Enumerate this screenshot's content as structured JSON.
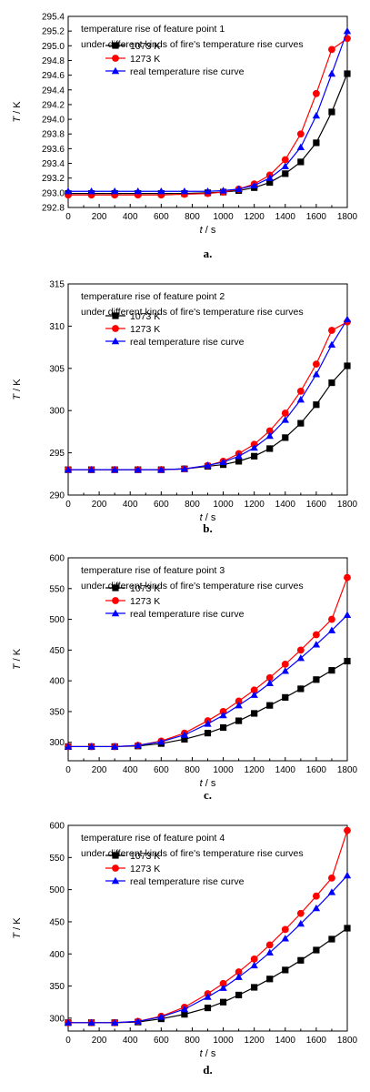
{
  "colors": {
    "s1073": "#000000",
    "s1273": "#ff0000",
    "sreal": "#0000ff",
    "axis": "#000000"
  },
  "chart_data": [
    {
      "type": "line",
      "caption": "a.",
      "annotation": [
        "temperature rise of feature point 1",
        "under different kinds of fire's temperature rise curves"
      ],
      "xlabel_var": "t",
      "xlabel_unit": " / s",
      "ylabel_var": "T",
      "ylabel_unit": " / K",
      "xlim": [
        0,
        1800
      ],
      "ylim": [
        292.8,
        295.4
      ],
      "xticks": [
        0,
        200,
        400,
        600,
        800,
        1000,
        1200,
        1400,
        1600,
        1800
      ],
      "yticks": [
        292.8,
        293.0,
        293.2,
        293.4,
        293.6,
        293.8,
        294.0,
        294.2,
        294.4,
        294.6,
        294.8,
        295.0,
        295.2,
        295.4
      ],
      "ytick_labels": [
        "292.8",
        "293.0",
        "293.2",
        "293.4",
        "293.6",
        "293.8",
        "294.0",
        "294.2",
        "294.4",
        "294.6",
        "294.8",
        "295.0",
        "295.2",
        "295.4"
      ],
      "legend_pos": "upper-left",
      "x": [
        0,
        150,
        300,
        450,
        600,
        750,
        900,
        1000,
        1100,
        1200,
        1300,
        1400,
        1500,
        1600,
        1700,
        1800
      ],
      "series": [
        {
          "name": "1073 K",
          "marker": "square",
          "values": [
            292.99,
            292.99,
            292.99,
            292.99,
            292.99,
            292.99,
            293.0,
            293.01,
            293.03,
            293.07,
            293.14,
            293.26,
            293.42,
            293.68,
            294.1,
            294.62
          ]
        },
        {
          "name": "1273 K",
          "marker": "circle",
          "values": [
            292.97,
            292.97,
            292.97,
            292.97,
            292.97,
            292.98,
            292.99,
            293.01,
            293.05,
            293.12,
            293.24,
            293.45,
            293.8,
            294.35,
            294.95,
            295.1
          ]
        },
        {
          "name": "real temperature rise curve",
          "marker": "triangle",
          "values": [
            293.02,
            293.02,
            293.02,
            293.02,
            293.02,
            293.02,
            293.02,
            293.03,
            293.05,
            293.1,
            293.2,
            293.36,
            293.62,
            294.05,
            294.62,
            295.2
          ]
        }
      ]
    },
    {
      "type": "line",
      "caption": "b.",
      "annotation": [
        "temperature rise of feature point 2",
        "under different kinds of fire's temperature rise curves"
      ],
      "xlabel_var": "t",
      "xlabel_unit": " / s",
      "ylabel_var": "T",
      "ylabel_unit": " / K",
      "xlim": [
        0,
        1800
      ],
      "ylim": [
        290,
        315
      ],
      "xticks": [
        0,
        200,
        400,
        600,
        800,
        1000,
        1200,
        1400,
        1600,
        1800
      ],
      "yticks": [
        290,
        295,
        300,
        305,
        310,
        315
      ],
      "ytick_labels": [
        "290",
        "295",
        "300",
        "305",
        "310",
        "315"
      ],
      "legend_pos": "upper-left",
      "x": [
        0,
        150,
        300,
        450,
        600,
        750,
        900,
        1000,
        1100,
        1200,
        1300,
        1400,
        1500,
        1600,
        1700,
        1800
      ],
      "series": [
        {
          "name": "1073 K",
          "marker": "square",
          "values": [
            293.0,
            293.0,
            293.0,
            293.0,
            293.0,
            293.1,
            293.4,
            293.6,
            294.0,
            294.6,
            295.5,
            296.8,
            298.5,
            300.7,
            303.3,
            305.3
          ]
        },
        {
          "name": "1273 K",
          "marker": "circle",
          "values": [
            293.0,
            293.0,
            293.0,
            293.0,
            293.0,
            293.1,
            293.5,
            294.0,
            294.9,
            296.0,
            297.6,
            299.7,
            302.3,
            305.5,
            309.5,
            310.5
          ]
        },
        {
          "name": "real temperature rise curve",
          "marker": "triangle",
          "values": [
            293.0,
            293.0,
            293.0,
            293.0,
            293.0,
            293.1,
            293.5,
            293.9,
            294.6,
            295.6,
            297.0,
            298.9,
            301.3,
            304.3,
            307.8,
            310.8
          ]
        }
      ]
    },
    {
      "type": "line",
      "caption": "c.",
      "annotation": [
        "temperature rise of feature point 3",
        "under different kinds of fire's temperature rise curves"
      ],
      "xlabel_var": "t",
      "xlabel_unit": " / s",
      "ylabel_var": "T",
      "ylabel_unit": " / K",
      "xlim": [
        0,
        1800
      ],
      "ylim": [
        270,
        600
      ],
      "xticks": [
        0,
        200,
        400,
        600,
        800,
        1000,
        1200,
        1400,
        1600,
        1800
      ],
      "yticks": [
        300,
        350,
        400,
        450,
        500,
        550,
        600
      ],
      "ytick_labels": [
        "300",
        "350",
        "400",
        "450",
        "500",
        "550",
        "600"
      ],
      "legend_pos": "upper-left",
      "x": [
        0,
        150,
        300,
        450,
        600,
        750,
        900,
        1000,
        1100,
        1200,
        1300,
        1400,
        1500,
        1600,
        1700,
        1800
      ],
      "series": [
        {
          "name": "1073 K",
          "marker": "square",
          "values": [
            293,
            293,
            293,
            294,
            298,
            305,
            315,
            324,
            335,
            347,
            360,
            373,
            387,
            402,
            417,
            432
          ]
        },
        {
          "name": "1273 K",
          "marker": "circle",
          "values": [
            293,
            293,
            293,
            295,
            302,
            315,
            335,
            350,
            367,
            385,
            405,
            427,
            450,
            475,
            500,
            568
          ]
        },
        {
          "name": "real temperature rise curve",
          "marker": "triangle",
          "values": [
            293,
            293,
            293,
            295,
            301,
            312,
            330,
            344,
            360,
            377,
            396,
            416,
            437,
            459,
            482,
            507
          ]
        }
      ]
    },
    {
      "type": "line",
      "caption": "d.",
      "annotation": [
        "temperature rise of feature point 4",
        "under different kinds of fire's temperature rise curves"
      ],
      "xlabel_var": "t",
      "xlabel_unit": " / s",
      "ylabel_var": "T",
      "ylabel_unit": " / K",
      "xlim": [
        0,
        1800
      ],
      "ylim": [
        280,
        600
      ],
      "xticks": [
        0,
        200,
        400,
        600,
        800,
        1000,
        1200,
        1400,
        1600,
        1800
      ],
      "yticks": [
        300,
        350,
        400,
        450,
        500,
        550,
        600
      ],
      "ytick_labels": [
        "300",
        "350",
        "400",
        "450",
        "500",
        "550",
        "600"
      ],
      "legend_pos": "upper-left",
      "x": [
        0,
        150,
        300,
        450,
        600,
        750,
        900,
        1000,
        1100,
        1200,
        1300,
        1400,
        1500,
        1600,
        1700,
        1800
      ],
      "series": [
        {
          "name": "1073 K",
          "marker": "square",
          "values": [
            293,
            293,
            293,
            294,
            299,
            306,
            316,
            325,
            336,
            348,
            361,
            375,
            390,
            406,
            423,
            440
          ]
        },
        {
          "name": "1273 K",
          "marker": "circle",
          "values": [
            293,
            293,
            293,
            295,
            303,
            317,
            338,
            354,
            372,
            392,
            414,
            438,
            463,
            490,
            518,
            592
          ]
        },
        {
          "name": "real temperature rise curve",
          "marker": "triangle",
          "values": [
            293,
            293,
            293,
            295,
            302,
            314,
            333,
            347,
            364,
            382,
            402,
            424,
            447,
            471,
            496,
            522
          ]
        }
      ]
    }
  ]
}
